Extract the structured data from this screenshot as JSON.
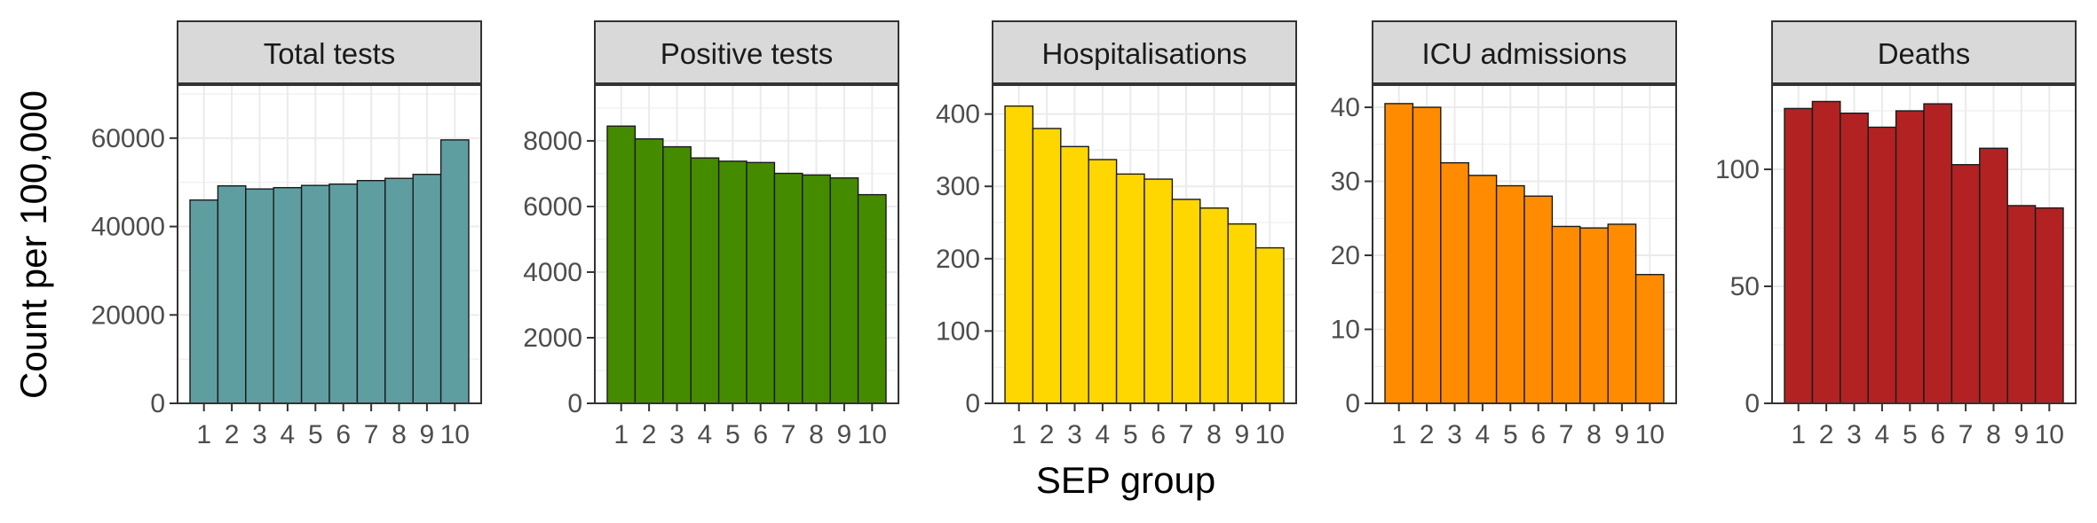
{
  "chart_data": {
    "type": "bar",
    "xlabel": "SEP group",
    "ylabel": "Count per 100,000",
    "categories": [
      "1",
      "2",
      "3",
      "4",
      "5",
      "6",
      "7",
      "8",
      "9",
      "10"
    ],
    "grid": true,
    "facets": [
      {
        "name": "Total tests",
        "color": "#5F9EA0",
        "ylim": [
          0,
          72000
        ],
        "yticks": [
          0,
          20000,
          40000,
          60000
        ],
        "ytick_labels": [
          "0",
          "20000",
          "40000",
          "60000"
        ],
        "values": [
          46000,
          49200,
          48500,
          48800,
          49300,
          49600,
          50400,
          50900,
          51800,
          59600
        ]
      },
      {
        "name": "Positive tests",
        "color": "#458B00",
        "ylim": [
          0,
          9700
        ],
        "yticks": [
          0,
          2000,
          4000,
          6000,
          8000
        ],
        "ytick_labels": [
          "0",
          "2000",
          "4000",
          "6000",
          "8000"
        ],
        "values": [
          8450,
          8060,
          7820,
          7480,
          7380,
          7340,
          7010,
          6960,
          6870,
          6360
        ]
      },
      {
        "name": "Hospitalisations",
        "color": "#FFD700",
        "ylim": [
          0,
          440
        ],
        "yticks": [
          0,
          100,
          200,
          300,
          400
        ],
        "ytick_labels": [
          "0",
          "100",
          "200",
          "300",
          "400"
        ],
        "values": [
          411,
          380,
          355,
          337,
          317,
          310,
          282,
          270,
          248,
          215
        ]
      },
      {
        "name": "ICU admissions",
        "color": "#FF8C00",
        "ylim": [
          0,
          43
        ],
        "yticks": [
          0,
          10,
          20,
          30,
          40
        ],
        "ytick_labels": [
          "0",
          "10",
          "20",
          "30",
          "40"
        ],
        "values": [
          40.5,
          40.0,
          32.5,
          30.8,
          29.4,
          28.0,
          23.9,
          23.7,
          24.2,
          17.4
        ]
      },
      {
        "name": "Deaths",
        "color": "#B22222",
        "ylim": [
          0,
          136
        ],
        "yticks": [
          0,
          50,
          100
        ],
        "ytick_labels": [
          "0",
          "50",
          "100"
        ],
        "values": [
          126,
          129,
          124,
          118,
          125,
          128,
          102,
          109,
          84.5,
          83.5
        ]
      }
    ]
  }
}
